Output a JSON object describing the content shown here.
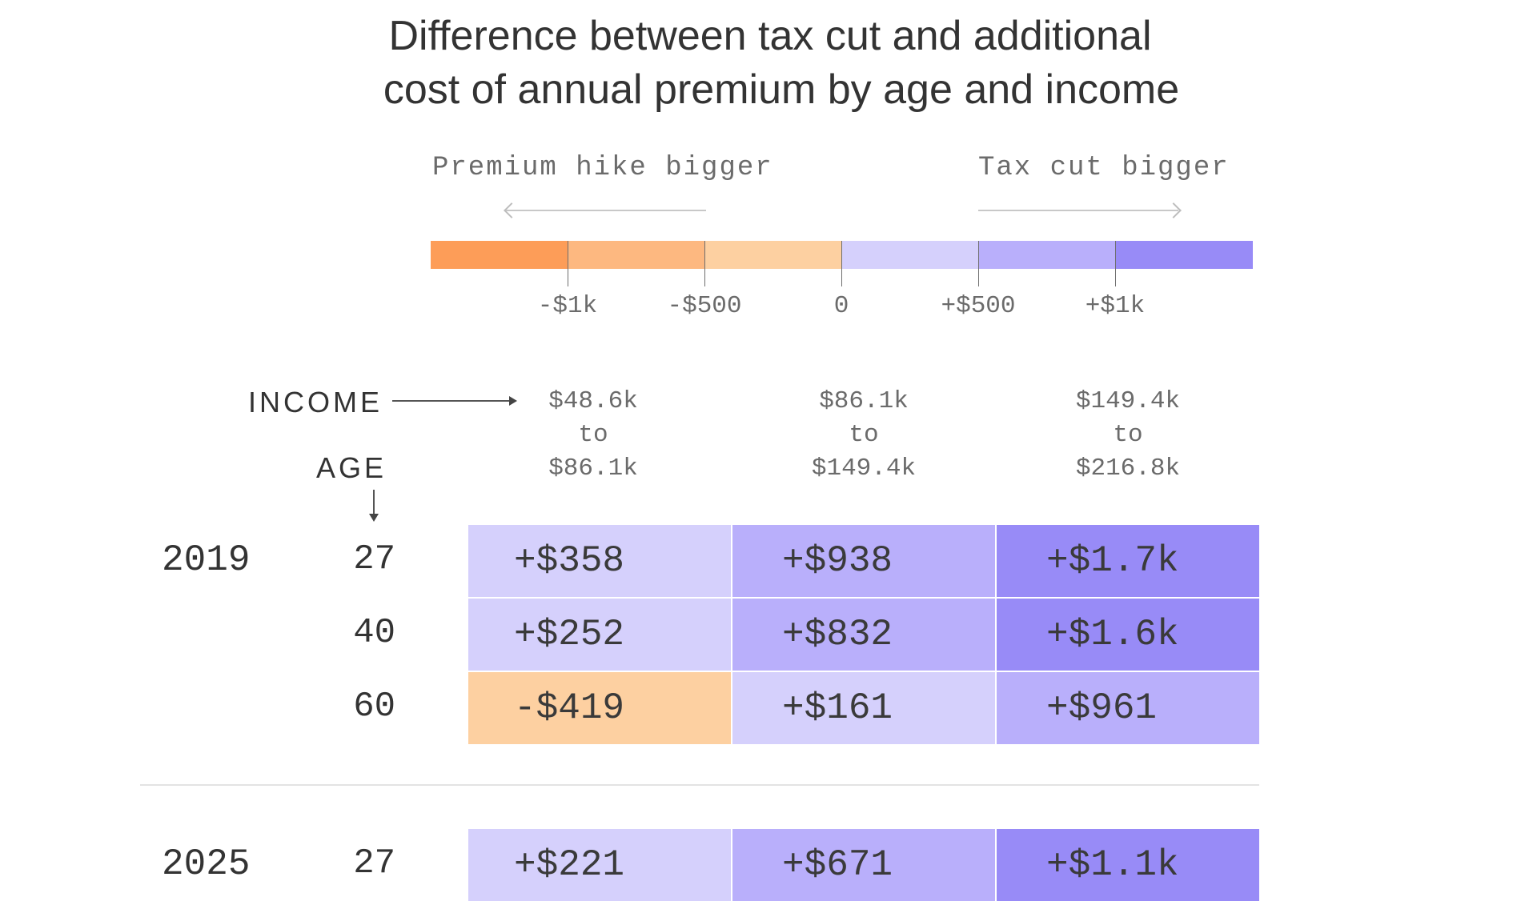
{
  "chart_data": {
    "type": "heatmap",
    "title": "Difference between tax cut and additional cost of annual premium by age and income",
    "title_lines": [
      "Difference between tax cut and additional",
      "cost of annual premium by age and income"
    ],
    "legend": {
      "left_label": "Premium hike bigger",
      "right_label": "Tax cut bigger",
      "scale_ticks": [
        "-$1k",
        "-$500",
        "0",
        "+$500",
        "+$1k"
      ],
      "scale_tick_values": [
        -1000,
        -500,
        0,
        500,
        1000
      ],
      "scale_colors": [
        "#fd9d58",
        "#fdb880",
        "#fdd0a1",
        "#d5d0fc",
        "#b9affb",
        "#988bf7"
      ]
    },
    "row_axis_label": "AGE",
    "column_axis_label": "INCOME",
    "columns": [
      {
        "lines": [
          "$48.6k",
          "to",
          "$86.1k"
        ]
      },
      {
        "lines": [
          "$86.1k",
          "to",
          "$149.4k"
        ]
      },
      {
        "lines": [
          "$149.4k",
          "to",
          "$216.8k"
        ]
      }
    ],
    "groups": [
      {
        "year": "2019",
        "rows": [
          {
            "age": "27",
            "labels": [
              "+$358",
              "+$938",
              "+$1.7k"
            ],
            "values": [
              358,
              938,
              1700
            ]
          },
          {
            "age": "40",
            "labels": [
              "+$252",
              "+$832",
              "+$1.6k"
            ],
            "values": [
              252,
              832,
              1600
            ]
          },
          {
            "age": "60",
            "labels": [
              "-$419",
              "+$161",
              "+$961"
            ],
            "values": [
              -419,
              161,
              961
            ]
          }
        ]
      },
      {
        "year": "2025",
        "rows": [
          {
            "age": "27",
            "labels": [
              "+$221",
              "+$671",
              "+$1.1k"
            ],
            "values": [
              221,
              671,
              1100
            ]
          }
        ]
      }
    ]
  }
}
